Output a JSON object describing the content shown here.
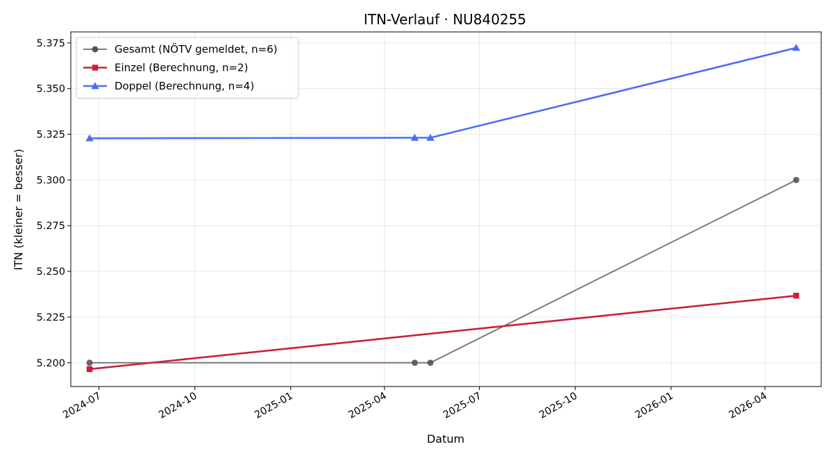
{
  "chart_data": {
    "type": "line",
    "title": "ITN-Verlauf · NU840255",
    "xlabel": "Datum",
    "ylabel": "ITN  (kleiner = besser)",
    "x_axis_type": "date",
    "xlim": [
      "2024-06-04",
      "2026-05-25"
    ],
    "ylim": [
      5.187,
      5.381
    ],
    "x_ticks": [
      "2024-07",
      "2024-10",
      "2025-01",
      "2025-04",
      "2025-07",
      "2025-10",
      "2026-01",
      "2026-04"
    ],
    "y_ticks": [
      "5.200",
      "5.225",
      "5.250",
      "5.275",
      "5.300",
      "5.325",
      "5.350",
      "5.375"
    ],
    "grid": true,
    "legend_position": "top-left",
    "series": [
      {
        "name": "Gesamt (NÖTV gemeldet, n=6)",
        "color": "#555555",
        "marker": "circle",
        "points": [
          {
            "x": "2024-06-22",
            "y": 5.2
          },
          {
            "x": "2025-04-30",
            "y": 5.2
          },
          {
            "x": "2025-05-15",
            "y": 5.2
          },
          {
            "x": "2026-05-01",
            "y": 5.3
          }
        ]
      },
      {
        "name": "Einzel (Berechnung, n=2)",
        "color": "#c8203d",
        "marker": "square",
        "points": [
          {
            "x": "2024-06-22",
            "y": 5.1965
          },
          {
            "x": "2026-05-01",
            "y": 5.2367
          }
        ]
      },
      {
        "name": "Doppel (Berechnung, n=4)",
        "color": "#4c6ef5",
        "marker": "triangle",
        "points": [
          {
            "x": "2024-06-22",
            "y": 5.3228
          },
          {
            "x": "2025-04-30",
            "y": 5.3231
          },
          {
            "x": "2025-05-15",
            "y": 5.3231
          },
          {
            "x": "2026-05-01",
            "y": 5.3723
          }
        ]
      }
    ]
  }
}
